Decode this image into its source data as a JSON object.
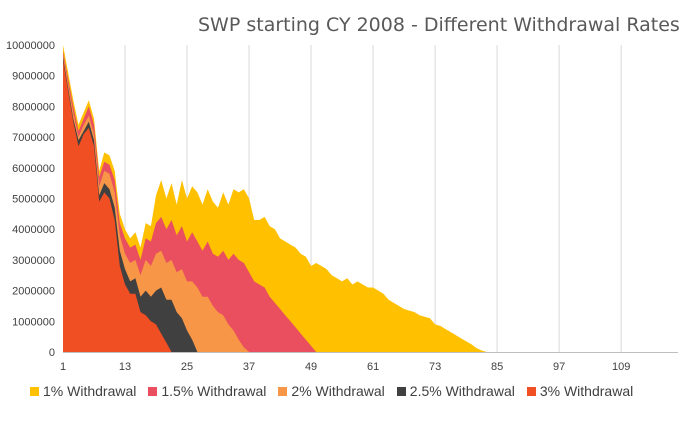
{
  "chart_data": {
    "type": "area",
    "title": "SWP starting CY 2008 - Different Withdrawal Rates",
    "xlabel": "",
    "ylabel": "",
    "x_ticks": [
      1,
      13,
      25,
      37,
      49,
      61,
      73,
      85,
      97,
      109
    ],
    "xlim": [
      1,
      120
    ],
    "y_ticks": [
      0,
      1000000,
      2000000,
      3000000,
      4000000,
      5000000,
      6000000,
      7000000,
      8000000,
      9000000,
      10000000
    ],
    "y_tick_labels": [
      "0",
      "1000000",
      "2000000",
      "3000000",
      "4000000",
      "5000000",
      "6000000",
      "7000000",
      "8000000",
      "9000000",
      "10000000"
    ],
    "ylim": [
      0,
      10000000
    ],
    "grid": "vertical",
    "legend_position": "bottom",
    "series": [
      {
        "name": "1% Withdrawal",
        "color": "#FFC000",
        "points": [
          [
            1,
            10000000
          ],
          [
            3,
            8200000
          ],
          [
            4,
            7400000
          ],
          [
            5,
            7800000
          ],
          [
            6,
            8200000
          ],
          [
            7,
            7600000
          ],
          [
            8,
            5900000
          ],
          [
            9,
            6500000
          ],
          [
            10,
            6400000
          ],
          [
            11,
            5900000
          ],
          [
            12,
            4500000
          ],
          [
            13,
            4000000
          ],
          [
            14,
            3700000
          ],
          [
            15,
            3900000
          ],
          [
            16,
            3400000
          ],
          [
            17,
            4200000
          ],
          [
            18,
            4100000
          ],
          [
            19,
            5100000
          ],
          [
            20,
            5600000
          ],
          [
            21,
            5000000
          ],
          [
            22,
            5500000
          ],
          [
            23,
            4800000
          ],
          [
            24,
            5600000
          ],
          [
            25,
            5000000
          ],
          [
            26,
            5400000
          ],
          [
            27,
            5200000
          ],
          [
            28,
            4800000
          ],
          [
            29,
            5300000
          ],
          [
            30,
            4900000
          ],
          [
            31,
            4700000
          ],
          [
            32,
            5200000
          ],
          [
            33,
            4800000
          ],
          [
            34,
            5300000
          ],
          [
            35,
            5200000
          ],
          [
            36,
            5300000
          ],
          [
            37,
            5000000
          ],
          [
            38,
            4300000
          ],
          [
            39,
            4300000
          ],
          [
            40,
            4400000
          ],
          [
            41,
            4100000
          ],
          [
            42,
            4000000
          ],
          [
            43,
            3700000
          ],
          [
            44,
            3600000
          ],
          [
            45,
            3500000
          ],
          [
            46,
            3400000
          ],
          [
            47,
            3200000
          ],
          [
            48,
            3100000
          ],
          [
            49,
            2800000
          ],
          [
            50,
            2900000
          ],
          [
            51,
            2800000
          ],
          [
            52,
            2700000
          ],
          [
            53,
            2500000
          ],
          [
            54,
            2400000
          ],
          [
            55,
            2300000
          ],
          [
            56,
            2400000
          ],
          [
            57,
            2200000
          ],
          [
            58,
            2300000
          ],
          [
            59,
            2200000
          ],
          [
            60,
            2100000
          ],
          [
            61,
            2100000
          ],
          [
            62,
            2000000
          ],
          [
            63,
            1900000
          ],
          [
            64,
            1700000
          ],
          [
            65,
            1600000
          ],
          [
            66,
            1500000
          ],
          [
            67,
            1400000
          ],
          [
            68,
            1350000
          ],
          [
            69,
            1300000
          ],
          [
            70,
            1200000
          ],
          [
            71,
            1150000
          ],
          [
            72,
            1100000
          ],
          [
            73,
            900000
          ],
          [
            74,
            850000
          ],
          [
            75,
            750000
          ],
          [
            76,
            650000
          ],
          [
            77,
            550000
          ],
          [
            78,
            450000
          ],
          [
            79,
            350000
          ],
          [
            80,
            250000
          ],
          [
            81,
            130000
          ],
          [
            82,
            50000
          ],
          [
            83,
            0
          ]
        ]
      },
      {
        "name": "1.5% Withdrawal",
        "color": "#E94F5E",
        "points": [
          [
            1,
            9800000
          ],
          [
            3,
            8000000
          ],
          [
            4,
            7200000
          ],
          [
            5,
            7600000
          ],
          [
            6,
            8000000
          ],
          [
            7,
            7400000
          ],
          [
            8,
            5700000
          ],
          [
            9,
            6200000
          ],
          [
            10,
            6100000
          ],
          [
            11,
            5600000
          ],
          [
            12,
            4200000
          ],
          [
            13,
            3700000
          ],
          [
            14,
            3400000
          ],
          [
            15,
            3500000
          ],
          [
            16,
            3000000
          ],
          [
            17,
            3700000
          ],
          [
            18,
            3600000
          ],
          [
            19,
            4200000
          ],
          [
            20,
            4400000
          ],
          [
            21,
            4000000
          ],
          [
            22,
            4300000
          ],
          [
            23,
            3800000
          ],
          [
            24,
            4100000
          ],
          [
            25,
            3600000
          ],
          [
            26,
            3900000
          ],
          [
            27,
            3600000
          ],
          [
            28,
            3300000
          ],
          [
            29,
            3600000
          ],
          [
            30,
            3200000
          ],
          [
            31,
            3100000
          ],
          [
            32,
            3300000
          ],
          [
            33,
            3000000
          ],
          [
            34,
            3200000
          ],
          [
            35,
            3000000
          ],
          [
            36,
            2900000
          ],
          [
            37,
            2600000
          ],
          [
            38,
            2300000
          ],
          [
            39,
            2200000
          ],
          [
            40,
            2100000
          ],
          [
            41,
            1800000
          ],
          [
            42,
            1600000
          ],
          [
            43,
            1400000
          ],
          [
            44,
            1200000
          ],
          [
            45,
            1000000
          ],
          [
            46,
            800000
          ],
          [
            47,
            600000
          ],
          [
            48,
            400000
          ],
          [
            49,
            200000
          ],
          [
            50,
            0
          ]
        ]
      },
      {
        "name": "2%  Withdrawal",
        "color": "#F79646",
        "points": [
          [
            1,
            9700000
          ],
          [
            3,
            7800000
          ],
          [
            4,
            7000000
          ],
          [
            5,
            7400000
          ],
          [
            6,
            7700000
          ],
          [
            7,
            7100000
          ],
          [
            8,
            5400000
          ],
          [
            9,
            5900000
          ],
          [
            10,
            5800000
          ],
          [
            11,
            5200000
          ],
          [
            12,
            3800000
          ],
          [
            13,
            3200000
          ],
          [
            14,
            2900000
          ],
          [
            15,
            3000000
          ],
          [
            16,
            2500000
          ],
          [
            17,
            3000000
          ],
          [
            18,
            2800000
          ],
          [
            19,
            3200000
          ],
          [
            20,
            3300000
          ],
          [
            21,
            2900000
          ],
          [
            22,
            3000000
          ],
          [
            23,
            2600000
          ],
          [
            24,
            2700000
          ],
          [
            25,
            2300000
          ],
          [
            26,
            2300000
          ],
          [
            27,
            2100000
          ],
          [
            28,
            1800000
          ],
          [
            29,
            1800000
          ],
          [
            30,
            1500000
          ],
          [
            31,
            1300000
          ],
          [
            32,
            1200000
          ],
          [
            33,
            900000
          ],
          [
            34,
            700000
          ],
          [
            35,
            400000
          ],
          [
            36,
            150000
          ],
          [
            37,
            0
          ]
        ]
      },
      {
        "name": "2.5%  Withdrawal",
        "color": "#404040",
        "points": [
          [
            1,
            9600000
          ],
          [
            3,
            7600000
          ],
          [
            4,
            6900000
          ],
          [
            5,
            7200000
          ],
          [
            6,
            7500000
          ],
          [
            7,
            6900000
          ],
          [
            8,
            5100000
          ],
          [
            9,
            5500000
          ],
          [
            10,
            5300000
          ],
          [
            11,
            4700000
          ],
          [
            12,
            3300000
          ],
          [
            13,
            2700000
          ],
          [
            14,
            2300000
          ],
          [
            15,
            2400000
          ],
          [
            16,
            1800000
          ],
          [
            17,
            2000000
          ],
          [
            18,
            1800000
          ],
          [
            19,
            2000000
          ],
          [
            20,
            2100000
          ],
          [
            21,
            1700000
          ],
          [
            22,
            1700000
          ],
          [
            23,
            1300000
          ],
          [
            24,
            1100000
          ],
          [
            25,
            700000
          ],
          [
            26,
            400000
          ],
          [
            27,
            0
          ]
        ]
      },
      {
        "name": "3%  Withdrawal",
        "color": "#F04E23",
        "points": [
          [
            1,
            9500000
          ],
          [
            3,
            7500000
          ],
          [
            4,
            6700000
          ],
          [
            5,
            7100000
          ],
          [
            6,
            7300000
          ],
          [
            7,
            6700000
          ],
          [
            8,
            4900000
          ],
          [
            9,
            5200000
          ],
          [
            10,
            5000000
          ],
          [
            11,
            4300000
          ],
          [
            12,
            2800000
          ],
          [
            13,
            2200000
          ],
          [
            14,
            1900000
          ],
          [
            15,
            1900000
          ],
          [
            16,
            1300000
          ],
          [
            17,
            1200000
          ],
          [
            18,
            1000000
          ],
          [
            19,
            900000
          ],
          [
            20,
            600000
          ],
          [
            21,
            300000
          ],
          [
            22,
            0
          ]
        ]
      }
    ]
  }
}
